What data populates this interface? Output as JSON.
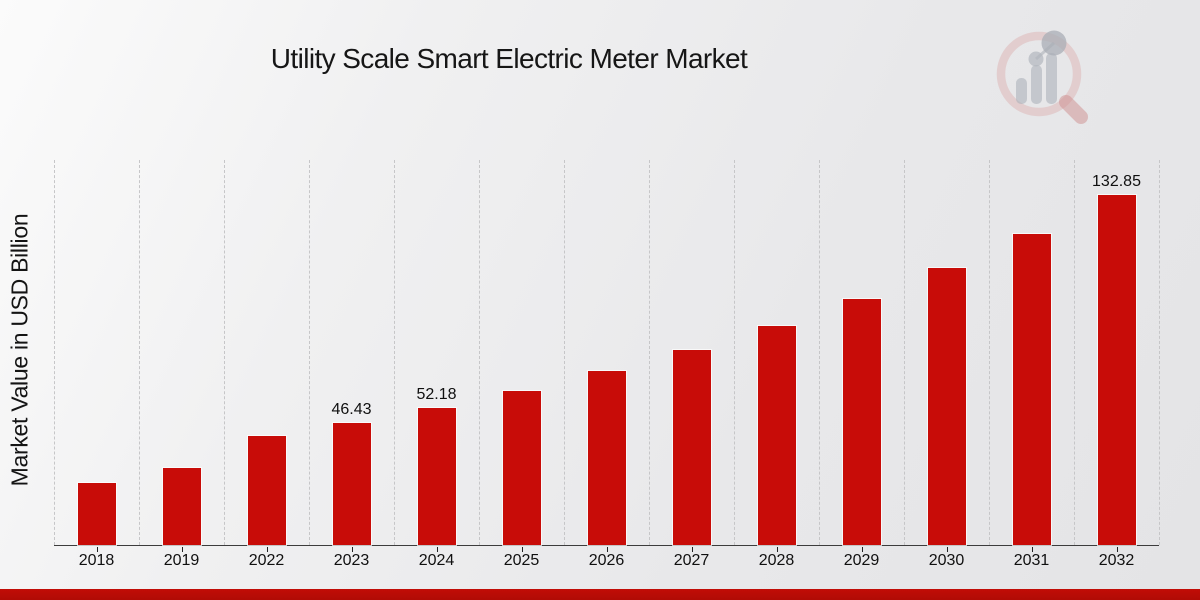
{
  "page": {
    "title": "Utility Scale Smart Electric Meter Market",
    "ylabel": "Market Value in USD Billion",
    "accent_red": "#c80c08",
    "footer_strip_color": "#b70c06",
    "logo_icon": "magnifier-bar-chart-watermark-icon"
  },
  "chart_data": {
    "type": "bar",
    "title": "Utility Scale Smart Electric Meter Market",
    "xlabel": "",
    "ylabel": "Market Value in USD Billion",
    "categories": [
      "2018",
      "2019",
      "2022",
      "2023",
      "2024",
      "2025",
      "2026",
      "2027",
      "2028",
      "2029",
      "2030",
      "2031",
      "2032"
    ],
    "series": [
      {
        "name": "Market Value in USD Billion",
        "values": [
          23.5,
          29.2,
          41.3,
          46.43,
          52.18,
          58.6,
          65.9,
          74.1,
          83.2,
          93.5,
          105.1,
          118.1,
          132.85
        ]
      }
    ],
    "data_labels": [
      "",
      "",
      "",
      "46.43",
      "52.18",
      "",
      "",
      "",
      "",
      "",
      "",
      "",
      "132.85"
    ],
    "bar_color": "#c80c08",
    "ylim": [
      0,
      146.5
    ],
    "grid": "vertical-dashed",
    "legend_position": "none"
  }
}
